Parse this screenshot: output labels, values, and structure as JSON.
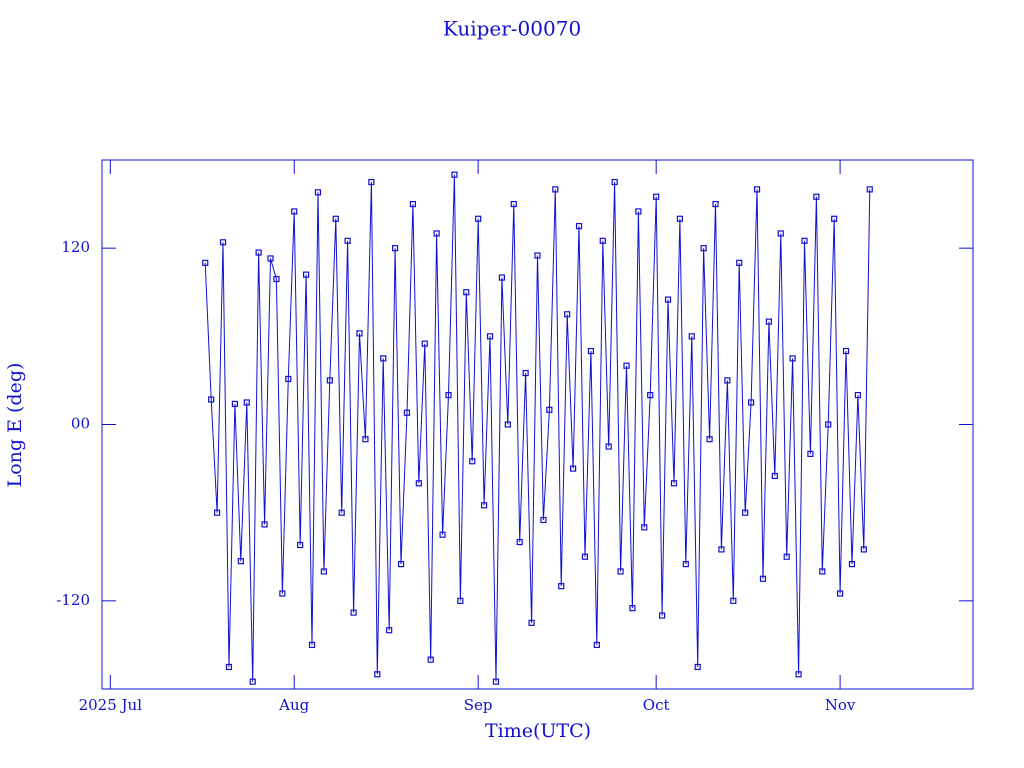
{
  "chart_data": {
    "type": "line",
    "title": "Kuiper-00070",
    "x_label": "Time(UTC)",
    "y_label": "Long E (deg)",
    "color": "#1010d0",
    "markers": "square",
    "x": [
      198,
      199,
      200,
      201,
      202,
      203,
      204,
      205,
      206,
      207,
      208,
      209,
      210,
      211,
      212,
      213,
      214,
      215,
      216,
      217,
      218,
      219,
      220,
      221,
      222,
      223,
      224,
      225,
      226,
      227,
      228,
      229,
      230,
      231,
      232,
      233,
      234,
      235,
      236,
      237,
      238,
      239,
      240,
      241,
      242,
      243,
      244,
      245,
      246,
      247,
      248,
      249,
      250,
      251,
      252,
      253,
      254,
      255,
      256,
      257,
      258,
      259,
      260,
      261,
      262,
      263,
      264,
      265,
      266,
      267,
      268,
      269,
      270,
      271,
      272,
      273,
      274,
      275,
      276,
      277,
      278,
      279,
      280,
      281,
      282,
      283,
      284,
      285,
      286,
      287,
      288,
      289,
      290,
      291,
      292,
      293,
      294,
      295,
      296,
      297,
      298,
      299,
      300,
      301,
      302,
      303,
      304,
      305,
      306,
      307,
      308,
      309,
      310
    ],
    "values": [
      110,
      17,
      -60,
      124,
      -165,
      14,
      -93,
      15,
      -175,
      117,
      -68,
      113,
      99,
      -115,
      31,
      145,
      -82,
      102,
      -150,
      158,
      -100,
      30,
      140,
      -60,
      125,
      -128,
      62,
      -10,
      165,
      -170,
      45,
      -140,
      120,
      -95,
      8,
      150,
      -40,
      55,
      -160,
      130,
      -75,
      20,
      170,
      -120,
      90,
      -25,
      140,
      -55,
      60,
      -175,
      100,
      0,
      150,
      -80,
      35,
      -135,
      115,
      -65,
      10,
      160,
      -110,
      75,
      -30,
      135,
      -90,
      50,
      -150,
      125,
      -15,
      165,
      -100,
      40,
      -125,
      145,
      -70,
      20,
      155,
      -130,
      85,
      -40,
      140,
      -95,
      60,
      -165,
      120,
      -10,
      150,
      -85,
      30,
      -120,
      110,
      -60,
      15,
      160,
      -105,
      70,
      -35,
      130,
      -90,
      45,
      -170,
      125,
      -20,
      155,
      -100,
      0,
      140,
      -115,
      50,
      -95,
      20,
      -85,
      160
    ],
    "xlim": [
      180.6,
      327.4
    ],
    "xticks": [
      {
        "value": 182,
        "label": "2025 Jul"
      },
      {
        "value": 213,
        "label": "Aug"
      },
      {
        "value": 244,
        "label": "Sep"
      },
      {
        "value": 274,
        "label": "Oct"
      },
      {
        "value": 305,
        "label": "Nov"
      }
    ],
    "ylim": [
      -180,
      180
    ],
    "yticks": [
      -120,
      {
        "value": 0,
        "label": "00"
      },
      120
    ]
  }
}
